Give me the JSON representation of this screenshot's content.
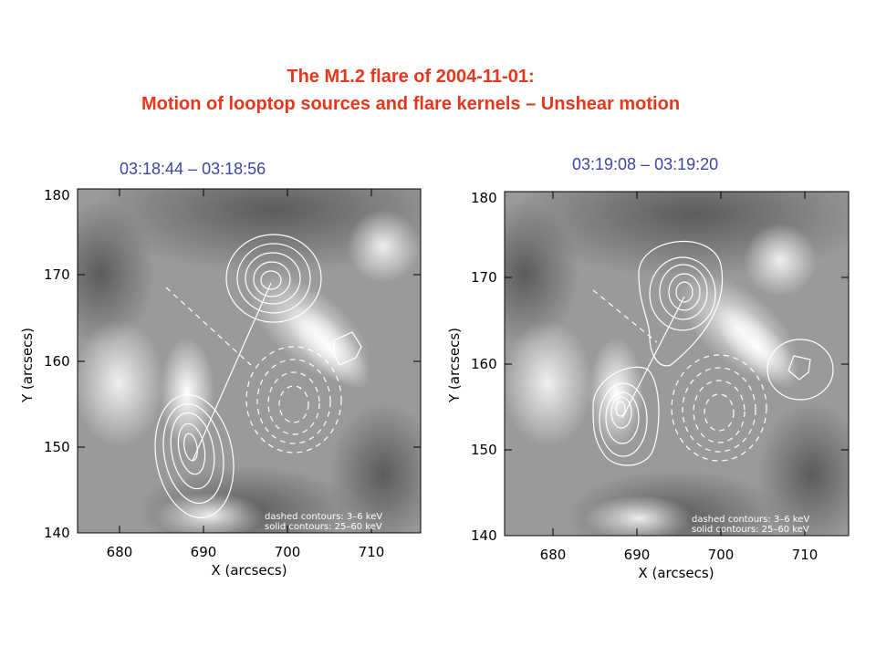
{
  "title": {
    "line1": "The M1.2 flare of 2004-11-01:",
    "line2": "Motion of looptop sources and flare kernels – Unshear motion"
  },
  "colors": {
    "title": "#e8361c",
    "time_label": "#3b46a6"
  },
  "panels": [
    {
      "time_label": "03:18:44 – 03:18:56",
      "xlabel": "X (arcsecs)",
      "ylabel": "Y (arcsecs)",
      "xticks": [
        "680",
        "690",
        "700",
        "710"
      ],
      "yticks": [
        "140",
        "150",
        "160",
        "170",
        "180"
      ],
      "legend": [
        "dashed contours:  3–6  keV",
        "solid  contours: 25–60 keV"
      ]
    },
    {
      "time_label": "03:19:08 – 03:19:20",
      "xlabel": "X (arcsecs)",
      "ylabel": "Y (arcsecs)",
      "xticks": [
        "680",
        "690",
        "700",
        "710"
      ],
      "yticks": [
        "140",
        "150",
        "160",
        "170",
        "180"
      ],
      "legend": [
        "dashed contours:  3–6  keV",
        "solid  contours: 25–60 keV"
      ]
    }
  ]
}
